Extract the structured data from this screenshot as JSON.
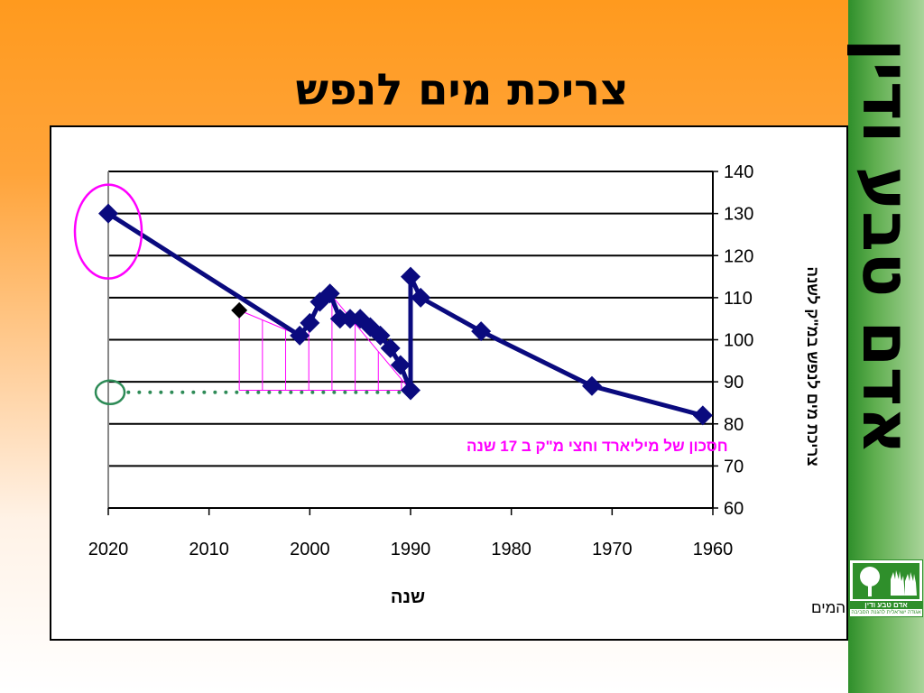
{
  "slide": {
    "title": "צריכת מים לנפש",
    "side_banner": "אדם טבע ודין",
    "logo_text": "אדם טבע ודין",
    "logo_subtext": "אגודה ישראלית להגנת הסביבה",
    "source_note": "נתוני נציבות המים"
  },
  "colors": {
    "series": "#0a0a7e",
    "highlight_ellipse": "#ff00ff",
    "savings_lines": "#ff00ff",
    "dotted_line": "#2e8b57",
    "annotation_text": "#ff00ff"
  },
  "chart_data": {
    "type": "line",
    "title": "",
    "xlabel": "שנה",
    "ylabel": "צריכת מים לנפש במ\"ק לשנה",
    "xlim": [
      2020,
      1960
    ],
    "x_axis_reversed": true,
    "ylim": [
      60,
      140
    ],
    "y_axis_position": "right",
    "x_ticks": [
      2020,
      2010,
      2000,
      1990,
      1980,
      1970,
      1960
    ],
    "y_ticks": [
      60,
      70,
      80,
      90,
      100,
      110,
      120,
      130,
      140
    ],
    "grid": true,
    "series": [
      {
        "points": [
          {
            "x": 2020,
            "y": 130
          },
          {
            "x": 2001,
            "y": 101
          },
          {
            "x": 2000,
            "y": 104
          },
          {
            "x": 1999,
            "y": 109
          },
          {
            "x": 1998,
            "y": 111
          },
          {
            "x": 1997,
            "y": 105
          },
          {
            "x": 1996,
            "y": 105
          },
          {
            "x": 1995,
            "y": 105
          },
          {
            "x": 1994,
            "y": 103
          },
          {
            "x": 1993,
            "y": 101
          },
          {
            "x": 1992,
            "y": 98
          },
          {
            "x": 1991,
            "y": 94
          },
          {
            "x": 1990,
            "y": 88
          },
          {
            "x": 1990,
            "y": 115
          },
          {
            "x": 1989,
            "y": 110
          },
          {
            "x": 1983,
            "y": 102
          },
          {
            "x": 1972,
            "y": 89
          },
          {
            "x": 1961,
            "y": 82
          }
        ]
      }
    ],
    "extra_point": {
      "x": 2007,
      "y": 107
    },
    "savings_region": {
      "upper": [
        [
          2007,
          107
        ],
        [
          2001,
          101
        ],
        [
          1998,
          111
        ],
        [
          1990,
          88
        ]
      ],
      "baseline": 88,
      "x_from": 2007,
      "x_to": 1990
    },
    "highlight_ellipse_around": {
      "x": 2020,
      "y": 130
    },
    "dotted_line": {
      "y": 87.5,
      "x_from": 2018,
      "x_to": 1990
    },
    "annotation": "חסכון של מיליארד וחצי מ\"ק ב 17 שנה"
  }
}
